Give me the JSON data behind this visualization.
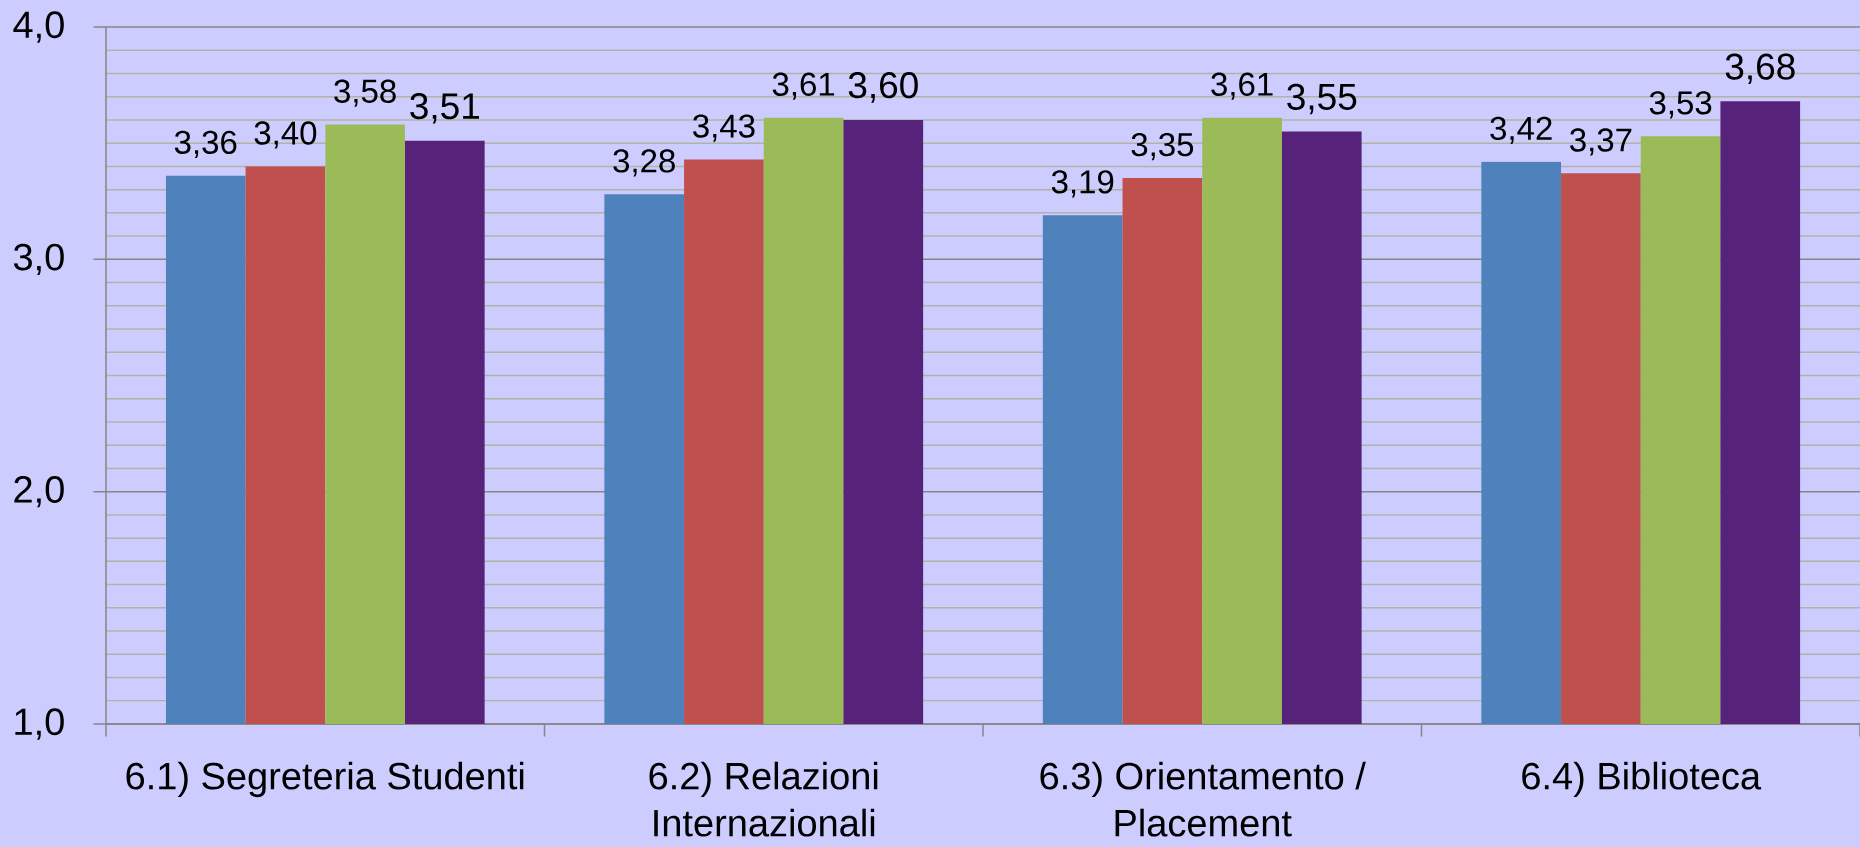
{
  "chart_data": {
    "type": "bar",
    "categories": [
      "6.1) Segreteria Studenti",
      "6.2) Relazioni Internazionali",
      "6.3) Orientamento / Placement",
      "6.4) Biblioteca"
    ],
    "series": [
      {
        "color": "#4f81bd",
        "values": [
          3.36,
          3.28,
          3.19,
          3.42
        ],
        "value_labels": [
          "3,36",
          "3,28",
          "3,19",
          "3,42"
        ]
      },
      {
        "color": "#c0504d",
        "values": [
          3.4,
          3.43,
          3.35,
          3.37
        ],
        "value_labels": [
          "3,40",
          "3,43",
          "3,35",
          "3,37"
        ]
      },
      {
        "color": "#9bbb59",
        "values": [
          3.58,
          3.61,
          3.61,
          3.53
        ],
        "value_labels": [
          "3,58",
          "3,61",
          "3,61",
          "3,53"
        ]
      },
      {
        "color": "#57237a",
        "values": [
          3.51,
          3.6,
          3.55,
          3.68
        ],
        "value_labels": [
          "3,51",
          "3,60",
          "3,55",
          "3,68"
        ]
      }
    ],
    "ylim": [
      1,
      4
    ],
    "yticks": [
      {
        "value": 1,
        "label": "1,0"
      },
      {
        "value": 2,
        "label": "2,0"
      },
      {
        "value": 3,
        "label": "3,0"
      },
      {
        "value": 4,
        "label": "4,0"
      }
    ],
    "grid": "y"
  }
}
